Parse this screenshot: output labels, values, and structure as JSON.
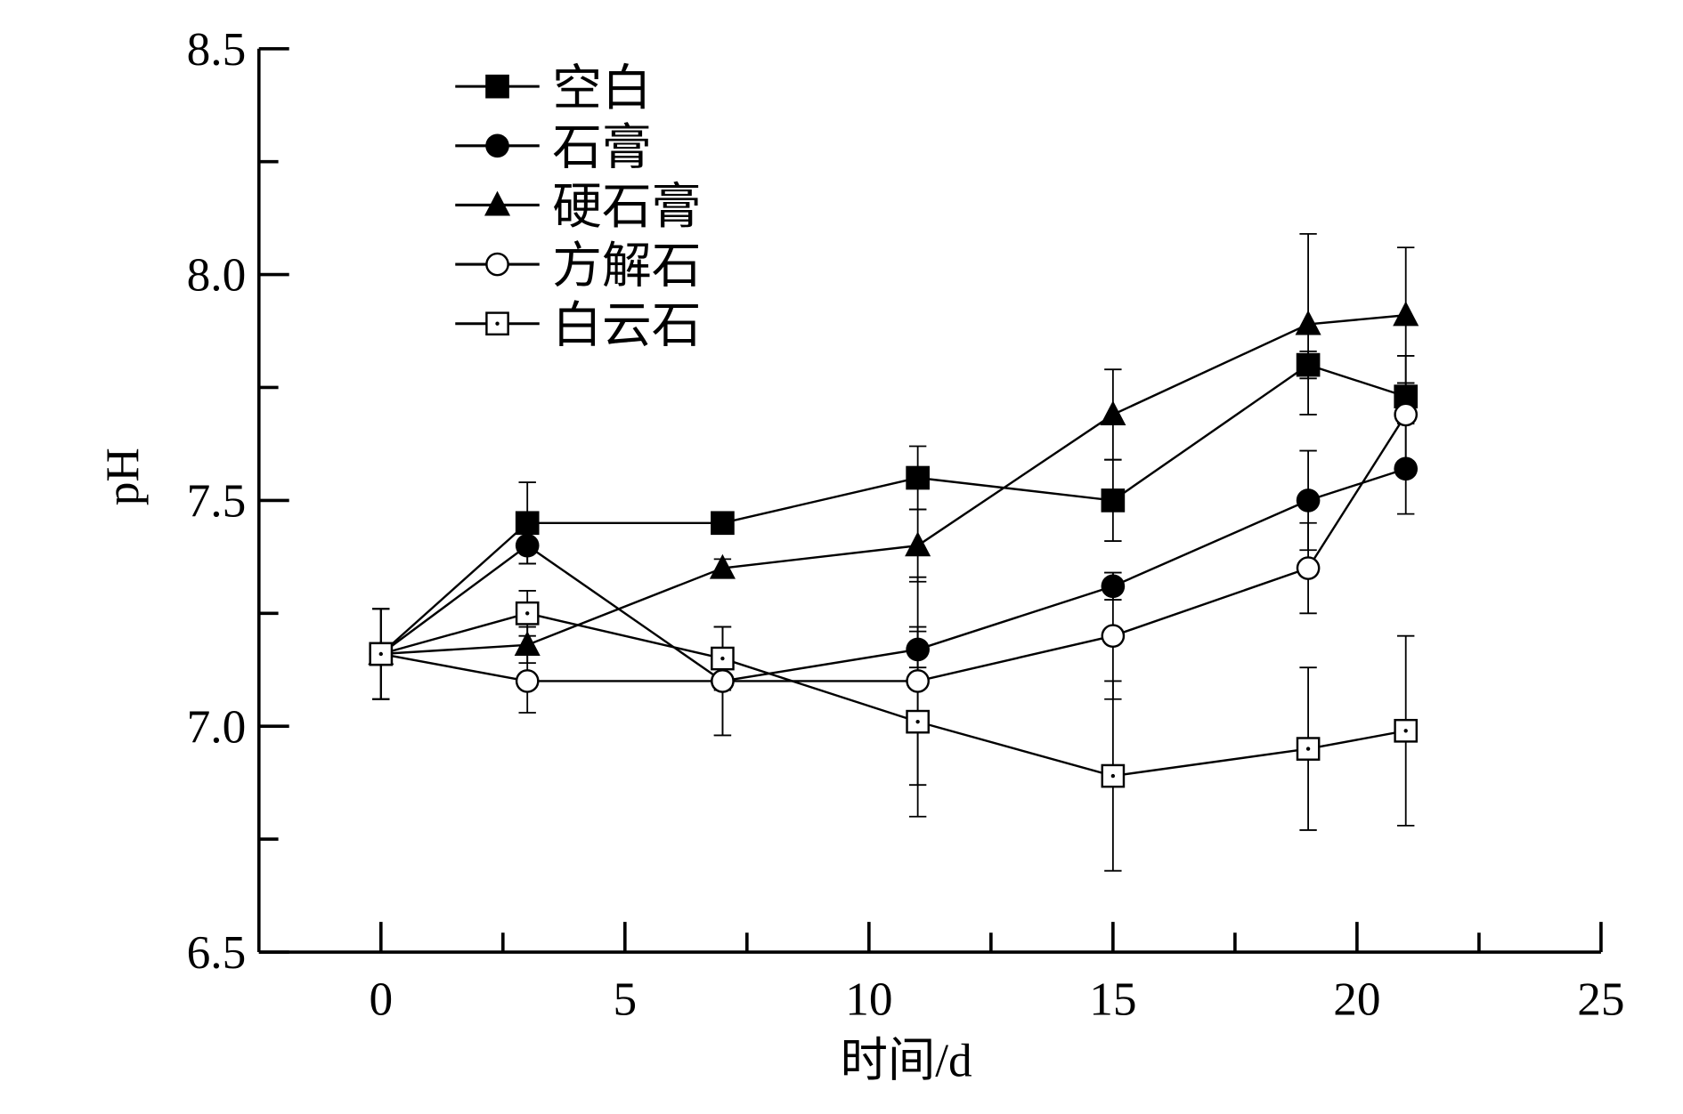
{
  "chart_data": {
    "type": "line",
    "title": "",
    "xlabel": "时间/d",
    "ylabel": "pH",
    "xlim": [
      -2.5,
      25
    ],
    "ylim": [
      6.5,
      8.5
    ],
    "xticks": [
      "0",
      "5",
      "10",
      "15",
      "20",
      "25"
    ],
    "yticks": [
      "6.5",
      "7.0",
      "7.5",
      "8.0",
      "8.5"
    ],
    "grid": false,
    "legend_position": "top-left",
    "x": [
      0,
      3,
      7,
      11,
      15,
      19,
      21
    ],
    "series": [
      {
        "name": "空白",
        "marker": "filled-square",
        "values": [
          7.16,
          7.45,
          7.45,
          7.55,
          7.5,
          7.8,
          7.73
        ],
        "errors": [
          0.1,
          0.09,
          0.02,
          0.07,
          0.09,
          0.03,
          0.03
        ]
      },
      {
        "name": "石膏",
        "marker": "filled-circle",
        "values": [
          7.16,
          7.4,
          7.1,
          7.17,
          7.31,
          7.5,
          7.57
        ],
        "errors": [
          0.1,
          0.04,
          0.12,
          0.04,
          0.03,
          0.11,
          0.1
        ]
      },
      {
        "name": "硬石膏",
        "marker": "filled-triangle",
        "values": [
          7.16,
          7.18,
          7.35,
          7.4,
          7.69,
          7.89,
          7.91
        ],
        "errors": [
          0.1,
          0.04,
          0.02,
          0.08,
          0.1,
          0.2,
          0.15
        ]
      },
      {
        "name": "方解石",
        "marker": "open-circle",
        "values": [
          7.16,
          7.1,
          7.1,
          7.1,
          7.2,
          7.35,
          7.69
        ],
        "errors": [
          0.1,
          0.07,
          0.12,
          0.23,
          0.14,
          0.1,
          0.13
        ]
      },
      {
        "name": "白云石",
        "marker": "open-square-dot",
        "values": [
          7.16,
          7.25,
          7.15,
          7.01,
          6.89,
          6.95,
          6.99
        ],
        "errors": [
          0.1,
          0.05,
          0.07,
          0.21,
          0.21,
          0.18,
          0.21
        ]
      }
    ]
  }
}
